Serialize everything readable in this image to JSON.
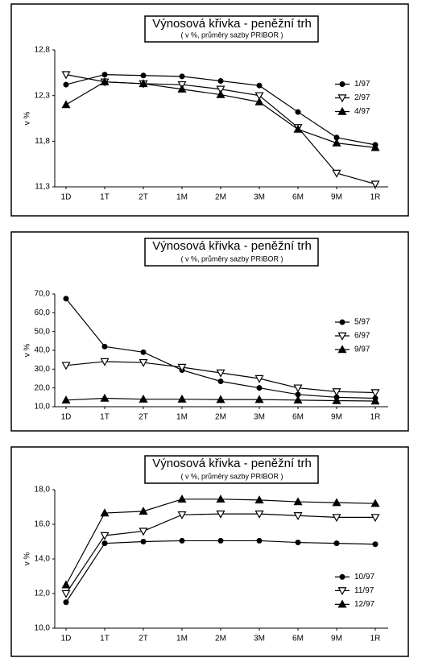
{
  "chart_data": [
    {
      "type": "line",
      "title": "Výnosová křivka - peněžní trh",
      "subtitle": "( v %, průměry sazby PRIBOR )",
      "y_label": "v %",
      "categories": [
        "1D",
        "1T",
        "2T",
        "1M",
        "2M",
        "3M",
        "6M",
        "9M",
        "1R"
      ],
      "ylim": [
        11.3,
        12.8
      ],
      "yticks": [
        {
          "value": 11.3,
          "label": "11,3"
        },
        {
          "value": 11.8,
          "label": "11,8"
        },
        {
          "value": 12.3,
          "label": "12,3"
        },
        {
          "value": 12.8,
          "label": "12,8"
        }
      ],
      "legend": "right",
      "series": [
        {
          "name": "1/97",
          "color": "#000000",
          "marker": "circle",
          "values": [
            12.42,
            12.53,
            12.52,
            12.51,
            12.46,
            12.41,
            12.12,
            11.84,
            11.76
          ]
        },
        {
          "name": "2/97",
          "color": "#000000",
          "marker": "triangle-down",
          "values": [
            12.53,
            12.45,
            12.43,
            12.42,
            12.37,
            12.3,
            11.95,
            11.45,
            11.33
          ]
        },
        {
          "name": "4/97",
          "color": "#000000",
          "marker": "triangle-up",
          "values": [
            12.2,
            12.45,
            12.43,
            12.37,
            12.31,
            12.23,
            11.93,
            11.78,
            11.73
          ]
        }
      ]
    },
    {
      "type": "line",
      "title": "Výnosová křivka - peněžní trh",
      "subtitle": "( v %, průměry sazby PRIBOR )",
      "y_label": "v %",
      "categories": [
        "1D",
        "1T",
        "2T",
        "1M",
        "2M",
        "3M",
        "6M",
        "9M",
        "1R"
      ],
      "ylim": [
        10,
        70
      ],
      "yticks": [
        {
          "value": 10,
          "label": "10,0"
        },
        {
          "value": 20,
          "label": "20,0"
        },
        {
          "value": 30,
          "label": "30,0"
        },
        {
          "value": 40,
          "label": "40,0"
        },
        {
          "value": 50,
          "label": "50,0"
        },
        {
          "value": 60,
          "label": "60,0"
        },
        {
          "value": 70,
          "label": "70,0"
        }
      ],
      "legend": "right",
      "series": [
        {
          "name": "5/97",
          "color": "#000000",
          "marker": "circle",
          "values": [
            67.5,
            42,
            39,
            29.5,
            23.5,
            20,
            16.5,
            15,
            14.5
          ]
        },
        {
          "name": "6/97",
          "color": "#000000",
          "marker": "triangle-down",
          "values": [
            32,
            34,
            33.5,
            31,
            28,
            25,
            20,
            18,
            17.5
          ]
        },
        {
          "name": "9/97",
          "color": "#000000",
          "marker": "triangle-up",
          "values": [
            13.5,
            14.5,
            14,
            14,
            13.8,
            13.8,
            13.5,
            13.2,
            13
          ]
        }
      ]
    },
    {
      "type": "line",
      "title": "Výnosová křivka - peněžní trh",
      "subtitle": "( v %, průměry sazby PRIBOR )",
      "y_label": "v %",
      "categories": [
        "1D",
        "1T",
        "2T",
        "1M",
        "2M",
        "3M",
        "6M",
        "9M",
        "1R"
      ],
      "ylim": [
        10,
        18
      ],
      "yticks": [
        {
          "value": 10,
          "label": "10,0"
        },
        {
          "value": 12,
          "label": "12,0"
        },
        {
          "value": 14,
          "label": "14,0"
        },
        {
          "value": 16,
          "label": "16,0"
        },
        {
          "value": 18,
          "label": "18,0"
        }
      ],
      "legend": "lower right",
      "series": [
        {
          "name": "10/97",
          "color": "#000000",
          "marker": "circle",
          "values": [
            11.5,
            14.9,
            15,
            15.05,
            15.05,
            15.05,
            14.95,
            14.9,
            14.85
          ]
        },
        {
          "name": "11/97",
          "color": "#000000",
          "marker": "triangle-down",
          "values": [
            12,
            15.35,
            15.6,
            16.55,
            16.6,
            16.6,
            16.5,
            16.4,
            16.4
          ]
        },
        {
          "name": "12/97",
          "color": "#000000",
          "marker": "triangle-up",
          "values": [
            12.5,
            16.65,
            16.75,
            17.45,
            17.45,
            17.4,
            17.3,
            17.25,
            17.2
          ]
        }
      ]
    }
  ]
}
